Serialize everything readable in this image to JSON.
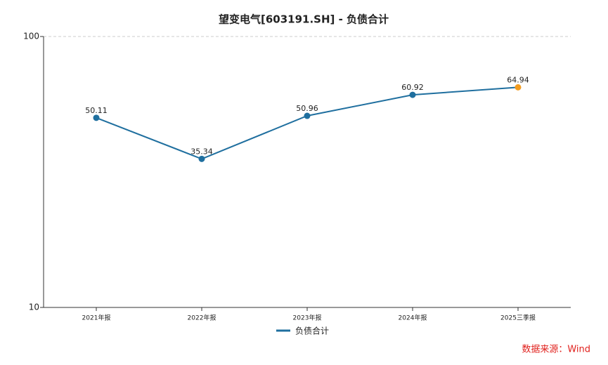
{
  "chart_data": {
    "type": "line",
    "title": "望变电气[603191.SH] - 负债合计",
    "categories": [
      "2021年报",
      "2022年报",
      "2023年报",
      "2024年报",
      "2025三季报"
    ],
    "series": [
      {
        "name": "负债合计",
        "color": "#1f6f9f",
        "point_colors": [
          "#1f6f9f",
          "#1f6f9f",
          "#1f6f9f",
          "#1f6f9f",
          "#f39c1f"
        ],
        "values": [
          50.11,
          35.34,
          50.96,
          60.92,
          64.94
        ]
      }
    ],
    "yscale": "log",
    "ylim": [
      10,
      100
    ],
    "yticks": [
      10,
      100
    ],
    "grid": true,
    "legend": "bottom",
    "source": "数据来源：Wind",
    "source_color": "#e0201c"
  }
}
